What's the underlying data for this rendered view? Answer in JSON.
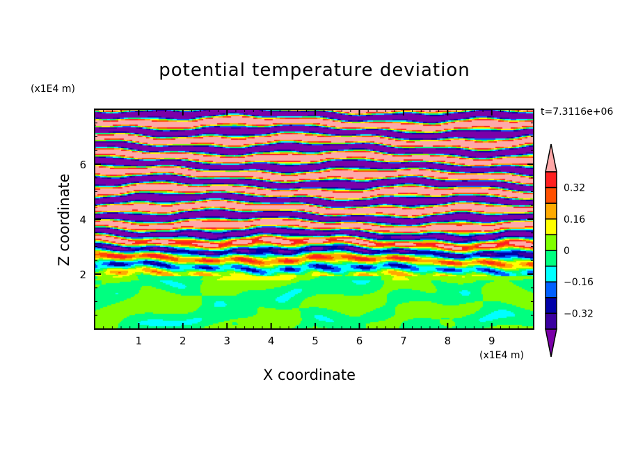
{
  "chart_data": {
    "type": "heatmap",
    "title": "potential temperature deviation",
    "xlabel": "X coordinate",
    "ylabel": "Z coordinate",
    "x_unit": "(x1E4 m)",
    "y_unit": "(x1E4 m)",
    "time_label": "t=7.3116e+06",
    "xlim": [
      0,
      9.95
    ],
    "ylim": [
      0,
      8
    ],
    "xticks": [
      "1",
      "2",
      "3",
      "4",
      "5",
      "6",
      "7",
      "8",
      "9"
    ],
    "yticks": [
      "2",
      "4",
      "6"
    ],
    "levels": [
      -0.4,
      -0.32,
      -0.24,
      -0.16,
      -0.08,
      0,
      0.08,
      0.16,
      0.24,
      0.32,
      0.4
    ],
    "colors": [
      "#7a00a8",
      "#3a00a0",
      "#0000a8",
      "#0060ff",
      "#00ffff",
      "#00ff80",
      "#80ff00",
      "#ffff00",
      "#ffaa00",
      "#ff5000",
      "#ff2020",
      "#ffa8a8"
    ],
    "colorbar_labels": [
      "0.32",
      "0.16",
      "0",
      "-0.16",
      "-0.32"
    ],
    "colorbar_label_values": [
      0.32,
      0.16,
      0,
      -0.16,
      -0.32
    ],
    "description_regions": {
      "stable_layer_top": 2.0
    }
  }
}
